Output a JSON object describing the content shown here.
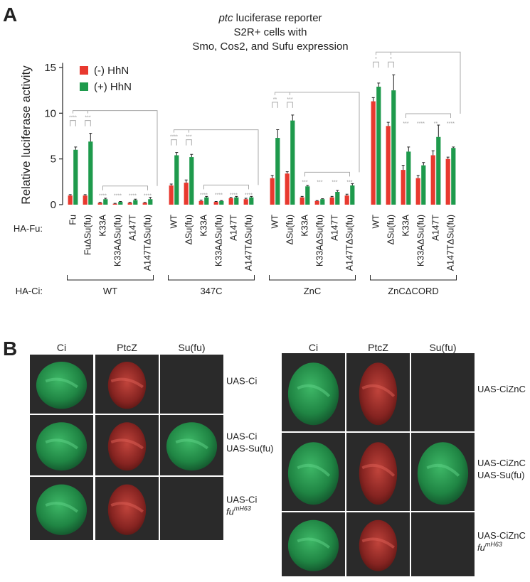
{
  "chart_data": {
    "type": "bar",
    "panel_label": "A",
    "title_italic": "ptc",
    "title_lines": [
      "luciferase reporter",
      "S2R+ cells with",
      "Smo, Cos2, and Sufu expression"
    ],
    "y_label": "Relative luciferase activity",
    "row_label_fu": "HA-Fu:",
    "row_label_ci": "HA-Ci:",
    "groups": [
      "WT",
      "347C",
      "ZnC",
      "ZnCΔCORD"
    ],
    "categories": [
      "Fu",
      "FuΔSu(fu)",
      "K33A",
      "K33AΔSu(fu)",
      "A147T",
      "A147TΔSu(fu)",
      "WT",
      "ΔSu(fu)",
      "K33A",
      "K33AΔSu(fu)",
      "A147T",
      "A147TΔSu(fu)",
      "WT",
      "ΔSu(fu)",
      "K33A",
      "K33AΔSu(fu)",
      "A147T",
      "A147TΔSu(fu)",
      "WT",
      "ΔSu(fu)",
      "K33A",
      "K33AΔSu(fu)",
      "A147T",
      "A147TΔSu(fu)"
    ],
    "series": [
      {
        "name": "(-) HhN",
        "color": "#e8392f",
        "values": [
          1.0,
          1.0,
          0.2,
          0.1,
          0.2,
          0.2,
          2.1,
          2.4,
          0.4,
          0.3,
          0.7,
          0.6,
          2.9,
          3.4,
          0.8,
          0.4,
          0.8,
          1.0,
          11.3,
          8.6,
          3.8,
          2.9,
          5.4,
          5.0
        ],
        "errors": [
          0.1,
          0.1,
          0.05,
          0.05,
          0.05,
          0.05,
          0.15,
          0.3,
          0.1,
          0.05,
          0.1,
          0.1,
          0.3,
          0.2,
          0.1,
          0.05,
          0.1,
          0.15,
          0.4,
          0.4,
          0.5,
          0.3,
          0.5,
          0.2
        ]
      },
      {
        "name": "(+) HhN",
        "color": "#1e9a4c",
        "values": [
          6.0,
          6.9,
          0.6,
          0.3,
          0.5,
          0.6,
          5.4,
          5.2,
          0.8,
          0.4,
          0.8,
          0.8,
          7.3,
          9.2,
          2.0,
          0.6,
          1.4,
          2.1,
          12.9,
          12.5,
          5.8,
          4.3,
          7.4,
          6.2
        ],
        "errors": [
          0.3,
          0.9,
          0.1,
          0.05,
          0.1,
          0.2,
          0.3,
          0.3,
          0.1,
          0.05,
          0.1,
          0.1,
          0.9,
          0.6,
          0.1,
          0.05,
          0.15,
          0.2,
          0.4,
          1.7,
          0.5,
          0.3,
          1.3,
          0.1
        ]
      }
    ],
    "significance": [
      "****",
      "***",
      "****",
      "****",
      "****",
      "****",
      "****",
      "***",
      "****",
      "****",
      "****",
      "****",
      "**",
      "***",
      "***",
      "***",
      "***",
      "***",
      "*",
      "*",
      "***",
      "****",
      "**",
      "****"
    ],
    "ylim": [
      0,
      15.5
    ],
    "yticks": [
      0,
      5,
      10,
      15
    ],
    "legend": "upper left"
  },
  "panel_b": {
    "panel_label": "B",
    "left": {
      "columns": [
        "Ci",
        "PtcZ",
        "Su(fu)"
      ],
      "rows": [
        {
          "lines": [
            "UAS-Ci"
          ]
        },
        {
          "lines": [
            "UAS-Ci",
            "UAS-Su(fu)"
          ]
        },
        {
          "lines": [
            "UAS-Ci"
          ],
          "italic": "fu",
          "sup": "mH63"
        }
      ]
    },
    "right": {
      "columns": [
        "Ci",
        "PtcZ",
        "Su(fu)"
      ],
      "rows": [
        {
          "lines": [
            "UAS-CiZnC"
          ]
        },
        {
          "lines": [
            "UAS-CiZnC",
            "UAS-Su(fu)"
          ]
        },
        {
          "lines": [
            "UAS-CiZnC"
          ],
          "italic": "fu",
          "sup": "mH63"
        }
      ]
    }
  }
}
